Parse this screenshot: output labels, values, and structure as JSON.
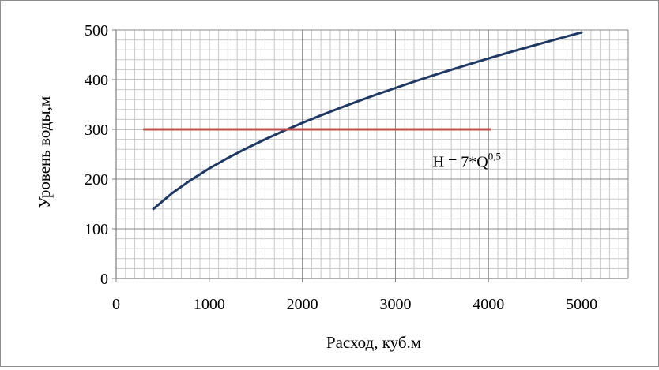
{
  "chart_data": {
    "type": "line",
    "xlabel": "Расход, куб.м",
    "ylabel": "Уровень воды,м",
    "xlim": [
      0,
      5500
    ],
    "ylim": [
      0,
      500
    ],
    "x_ticks": [
      0,
      1000,
      2000,
      3000,
      4000,
      5000
    ],
    "y_ticks": [
      0,
      100,
      200,
      300,
      400,
      500
    ],
    "x_tick_labels": [
      "0",
      "1000",
      "2000",
      "3000",
      "4000",
      "5000"
    ],
    "y_tick_labels": [
      "0",
      "100",
      "200",
      "300",
      "400",
      "500"
    ],
    "grid": true,
    "legend": "none",
    "annotation": {
      "base": "H = 7*Q",
      "exponent": "0,5",
      "at": [
        3400,
        225
      ]
    },
    "series": [
      {
        "color": "#1f3864",
        "points": [
          [
            400,
            140
          ],
          [
            600,
            171.5
          ],
          [
            800,
            198
          ],
          [
            1000,
            221.4
          ],
          [
            1200,
            242.5
          ],
          [
            1400,
            261.9
          ],
          [
            1600,
            280
          ],
          [
            1800,
            297
          ],
          [
            2000,
            313
          ],
          [
            2200,
            328.3
          ],
          [
            2400,
            342.9
          ],
          [
            2600,
            356.9
          ],
          [
            2800,
            370.4
          ],
          [
            3000,
            383.4
          ],
          [
            3200,
            396
          ],
          [
            3400,
            408.2
          ],
          [
            3600,
            420
          ],
          [
            3800,
            431.5
          ],
          [
            4000,
            442.7
          ],
          [
            4200,
            453.6
          ],
          [
            4400,
            464.3
          ],
          [
            4600,
            474.8
          ],
          [
            4800,
            485
          ],
          [
            5000,
            495
          ]
        ]
      },
      {
        "color": "#c0504d",
        "points": [
          [
            300,
            300
          ],
          [
            4020,
            300
          ]
        ]
      }
    ]
  }
}
